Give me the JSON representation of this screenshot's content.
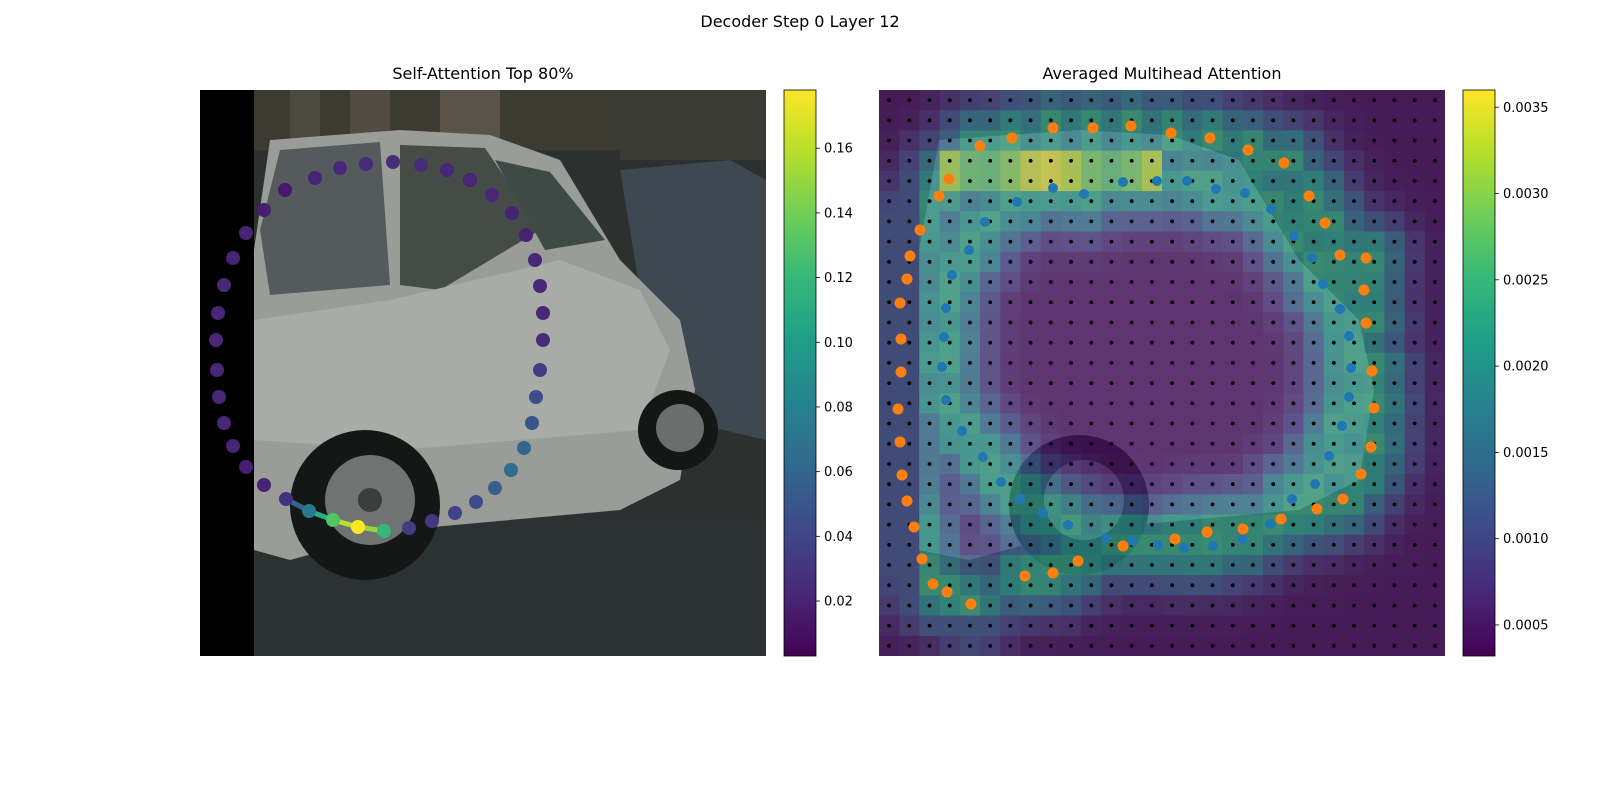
{
  "figure": {
    "suptitle": "Decoder Step 0 Layer 12"
  },
  "colors": {
    "viridis": [
      "#440154",
      "#482878",
      "#3e4989",
      "#31688e",
      "#26828e",
      "#1f9e89",
      "#35b779",
      "#6ece58",
      "#b5de2b",
      "#fde725"
    ],
    "orange_points": "#ff7f0e",
    "blue_points": "#1f77b4",
    "grid_dots": "#000000"
  },
  "chart_data": [
    {
      "type": "scatter",
      "title": "Self-Attention Top 80%",
      "background": "photo of a silver hatchback car parked on a street",
      "colorbar": {
        "range": [
          0.003,
          0.178
        ],
        "ticks": [
          "0.02",
          "0.04",
          "0.06",
          "0.08",
          "0.10",
          "0.12",
          "0.14",
          "0.16"
        ],
        "tick_values": [
          0.02,
          0.04,
          0.06,
          0.08,
          0.1,
          0.12,
          0.14,
          0.16
        ]
      },
      "points": [
        {
          "x": 85,
          "y": 100,
          "v": 0.015
        },
        {
          "x": 115,
          "y": 88,
          "v": 0.02
        },
        {
          "x": 140,
          "y": 78,
          "v": 0.022
        },
        {
          "x": 166,
          "y": 74,
          "v": 0.024
        },
        {
          "x": 193,
          "y": 72,
          "v": 0.025
        },
        {
          "x": 221,
          "y": 75,
          "v": 0.024
        },
        {
          "x": 247,
          "y": 80,
          "v": 0.022
        },
        {
          "x": 270,
          "y": 90,
          "v": 0.021
        },
        {
          "x": 292,
          "y": 105,
          "v": 0.022
        },
        {
          "x": 312,
          "y": 123,
          "v": 0.02
        },
        {
          "x": 326,
          "y": 145,
          "v": 0.02
        },
        {
          "x": 335,
          "y": 170,
          "v": 0.022
        },
        {
          "x": 340,
          "y": 196,
          "v": 0.022
        },
        {
          "x": 343,
          "y": 223,
          "v": 0.022
        },
        {
          "x": 343,
          "y": 250,
          "v": 0.025
        },
        {
          "x": 340,
          "y": 280,
          "v": 0.034
        },
        {
          "x": 336,
          "y": 307,
          "v": 0.045
        },
        {
          "x": 332,
          "y": 333,
          "v": 0.05
        },
        {
          "x": 324,
          "y": 358,
          "v": 0.06
        },
        {
          "x": 311,
          "y": 380,
          "v": 0.065
        },
        {
          "x": 295,
          "y": 398,
          "v": 0.055
        },
        {
          "x": 276,
          "y": 412,
          "v": 0.045
        },
        {
          "x": 255,
          "y": 423,
          "v": 0.038
        },
        {
          "x": 232,
          "y": 431,
          "v": 0.032
        },
        {
          "x": 209,
          "y": 438,
          "v": 0.035
        },
        {
          "x": 184,
          "y": 441,
          "v": 0.12
        },
        {
          "x": 158,
          "y": 437,
          "v": 0.178
        },
        {
          "x": 133,
          "y": 430,
          "v": 0.13
        },
        {
          "x": 109,
          "y": 421,
          "v": 0.075
        },
        {
          "x": 86,
          "y": 409,
          "v": 0.028
        },
        {
          "x": 64,
          "y": 395,
          "v": 0.02
        },
        {
          "x": 46,
          "y": 377,
          "v": 0.018
        },
        {
          "x": 33,
          "y": 356,
          "v": 0.02
        },
        {
          "x": 24,
          "y": 333,
          "v": 0.022
        },
        {
          "x": 19,
          "y": 307,
          "v": 0.022
        },
        {
          "x": 17,
          "y": 280,
          "v": 0.022
        },
        {
          "x": 16,
          "y": 250,
          "v": 0.022
        },
        {
          "x": 18,
          "y": 223,
          "v": 0.022
        },
        {
          "x": 24,
          "y": 195,
          "v": 0.022
        },
        {
          "x": 33,
          "y": 168,
          "v": 0.02
        },
        {
          "x": 46,
          "y": 143,
          "v": 0.02
        },
        {
          "x": 64,
          "y": 120,
          "v": 0.018
        }
      ],
      "edges": [
        {
          "from": [
            86,
            409
          ],
          "to": [
            109,
            421
          ],
          "v": 0.06
        },
        {
          "from": [
            109,
            421
          ],
          "to": [
            133,
            430
          ],
          "v": 0.11
        },
        {
          "from": [
            133,
            430
          ],
          "to": [
            158,
            437
          ],
          "v": 0.16
        },
        {
          "from": [
            158,
            437
          ],
          "to": [
            184,
            441
          ],
          "v": 0.15
        }
      ]
    },
    {
      "type": "heatmap",
      "title": "Averaged Multihead Attention",
      "background": "the same car photo, overlaid by a 28x28 attention heatmap and a dot grid",
      "colorbar": {
        "range": [
          0.00032,
          0.0036
        ],
        "ticks": [
          "0.0005",
          "0.0010",
          "0.0015",
          "0.0020",
          "0.0025",
          "0.0030",
          "0.0035"
        ],
        "tick_values": [
          0.0005,
          0.001,
          0.0015,
          0.002,
          0.0025,
          0.003,
          0.0035
        ]
      },
      "grid_size": 28,
      "orange_points": [
        [
          101,
          56
        ],
        [
          133,
          48
        ],
        [
          174,
          38
        ],
        [
          214,
          38
        ],
        [
          252,
          36
        ],
        [
          292,
          43
        ],
        [
          331,
          48
        ],
        [
          369,
          60
        ],
        [
          405,
          73
        ],
        [
          430,
          106
        ],
        [
          446,
          133
        ],
        [
          461,
          165
        ],
        [
          487,
          168
        ],
        [
          485,
          200
        ],
        [
          487,
          233
        ],
        [
          493,
          281
        ],
        [
          495,
          318
        ],
        [
          492,
          357
        ],
        [
          482,
          384
        ],
        [
          464,
          409
        ],
        [
          438,
          419
        ],
        [
          402,
          429
        ],
        [
          364,
          439
        ],
        [
          328,
          442
        ],
        [
          296,
          449
        ],
        [
          244,
          456
        ],
        [
          199,
          471
        ],
        [
          174,
          483
        ],
        [
          146,
          486
        ],
        [
          92,
          514
        ],
        [
          68,
          502
        ],
        [
          54,
          494
        ],
        [
          43,
          469
        ],
        [
          35,
          437
        ],
        [
          28,
          411
        ],
        [
          23,
          385
        ],
        [
          21,
          352
        ],
        [
          19,
          319
        ],
        [
          22,
          282
        ],
        [
          22,
          249
        ],
        [
          21,
          213
        ],
        [
          28,
          189
        ],
        [
          31,
          166
        ],
        [
          41,
          140
        ],
        [
          60,
          106
        ],
        [
          70,
          89
        ]
      ],
      "blue_points": [
        [
          174,
          98
        ],
        [
          205,
          104
        ],
        [
          244,
          92
        ],
        [
          278,
          91
        ],
        [
          308,
          91
        ],
        [
          337,
          99
        ],
        [
          366,
          103
        ],
        [
          392,
          119
        ],
        [
          415,
          146
        ],
        [
          433,
          168
        ],
        [
          444,
          194
        ],
        [
          461,
          219
        ],
        [
          470,
          246
        ],
        [
          472,
          278
        ],
        [
          470,
          307
        ],
        [
          463,
          336
        ],
        [
          450,
          366
        ],
        [
          436,
          394
        ],
        [
          413,
          409
        ],
        [
          391,
          434
        ],
        [
          364,
          449
        ],
        [
          334,
          456
        ],
        [
          305,
          458
        ],
        [
          279,
          455
        ],
        [
          254,
          451
        ],
        [
          227,
          448
        ],
        [
          189,
          435
        ],
        [
          164,
          423
        ],
        [
          141,
          409
        ],
        [
          122,
          392
        ],
        [
          104,
          367
        ],
        [
          83,
          341
        ],
        [
          67,
          310
        ],
        [
          63,
          277
        ],
        [
          65,
          247
        ],
        [
          67,
          218
        ],
        [
          73,
          185
        ],
        [
          90,
          160
        ],
        [
          106,
          132
        ],
        [
          138,
          112
        ]
      ]
    }
  ]
}
